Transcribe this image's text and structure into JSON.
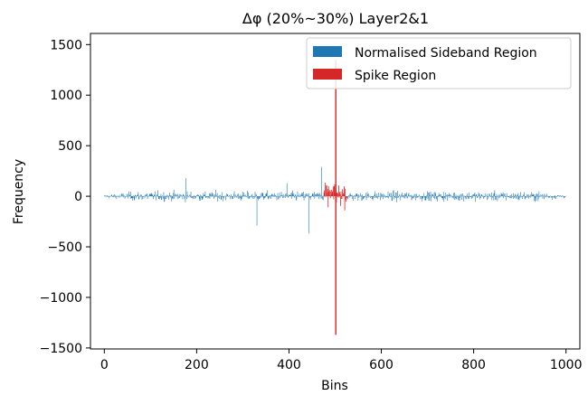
{
  "chart_data": {
    "type": "bar",
    "title": "Δφ (20%~30%) Layer2&1",
    "xlabel": "Bins",
    "ylabel": "Frequency",
    "xlim": [
      -30,
      1030
    ],
    "ylim": [
      -1510,
      1610
    ],
    "xticks": [
      "0",
      "200",
      "400",
      "600",
      "800",
      "1000"
    ],
    "yticks": [
      "−1500",
      "−1000",
      "−500",
      "0",
      "500",
      "1000",
      "1500"
    ],
    "legend_position": "top-right",
    "series": [
      {
        "name": "Normalised Sideband Region",
        "color": "#1f77b4",
        "x_range": [
          0,
          1000
        ],
        "typical_range": [
          -80,
          80
        ],
        "extremes": [
          180,
          -370
        ]
      },
      {
        "name": "Spike Region",
        "color": "#d62728",
        "x_range": [
          475,
          525
        ],
        "peak_bin": 500,
        "peak_max": 1350,
        "peak_min": -1370,
        "typical_range": [
          -140,
          220
        ]
      }
    ]
  }
}
